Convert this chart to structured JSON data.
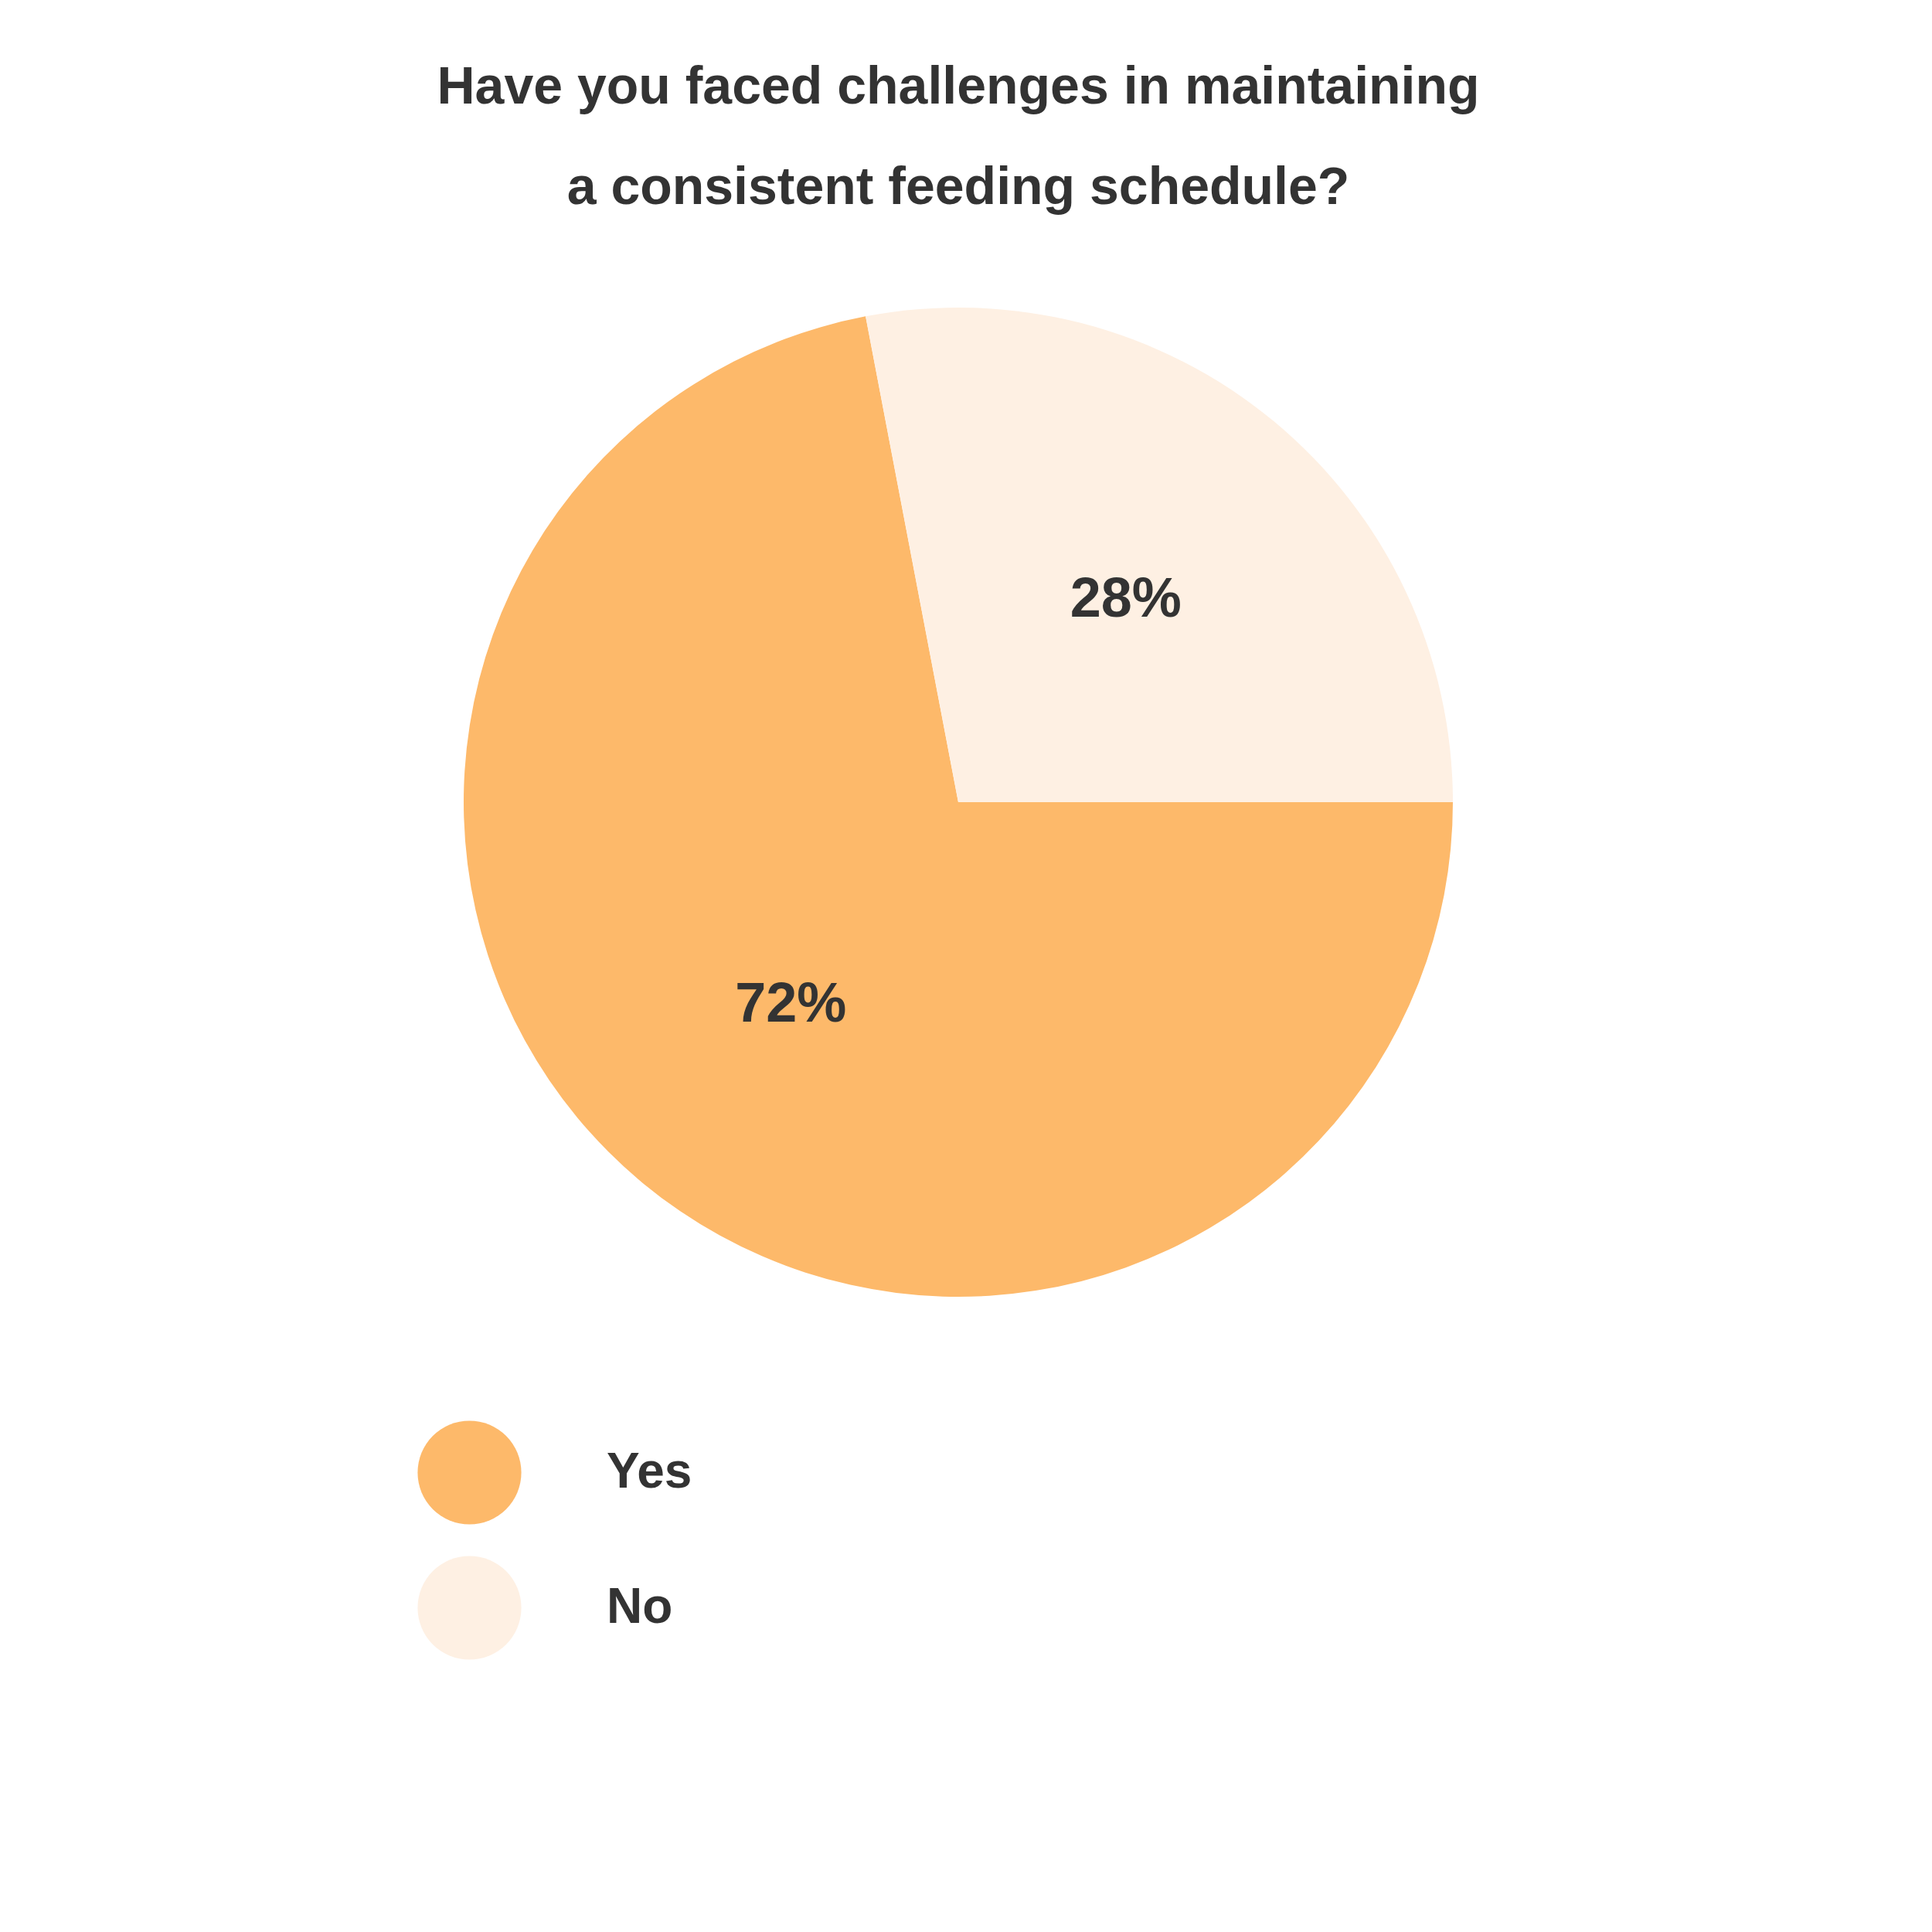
{
  "chart_data": {
    "type": "pie",
    "title": "Have you faced challenges in maintaining a consistent feeding schedule?",
    "categories": [
      "Yes",
      "No"
    ],
    "values": [
      72,
      28
    ],
    "colors": [
      "#fdb96a",
      "#fef0e3"
    ],
    "value_labels": [
      "72%",
      "28%"
    ],
    "legend": "bottom"
  }
}
